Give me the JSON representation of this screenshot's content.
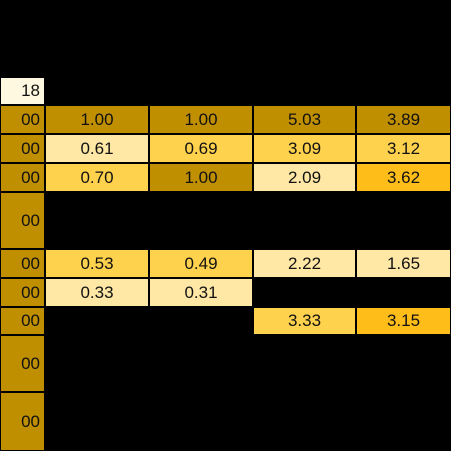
{
  "colors": {
    "dark_gold": "#c08f00",
    "light": "#ffe7a6",
    "mid": "#ffd24d",
    "orange": "#ffbd1a",
    "cream": "#fff8e1",
    "black": "#000000"
  },
  "cells": {
    "top_left": "18",
    "left": [
      "00",
      "00",
      "00",
      "00",
      "00",
      "00",
      "00",
      "00",
      "00"
    ],
    "r1": [
      "1.00",
      "1.00",
      "5.03",
      "3.89"
    ],
    "r2": [
      "0.61",
      "0.69",
      "3.09",
      "3.12"
    ],
    "r3": [
      "0.70",
      "1.00",
      "2.09",
      "3.62"
    ],
    "r5": [
      "0.53",
      "0.49",
      "2.22",
      "1.65"
    ],
    "r6": [
      "0.33",
      "0.31"
    ],
    "r7": [
      "3.33",
      "3.15"
    ]
  }
}
